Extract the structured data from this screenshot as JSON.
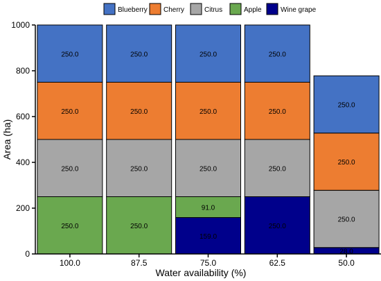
{
  "chart_data": {
    "type": "bar",
    "stacked": true,
    "categories": [
      "100.0",
      "87.5",
      "75.0",
      "62.5",
      "50.0"
    ],
    "series": [
      {
        "name": "Wine grape",
        "color": "#00008b",
        "values": [
          0,
          0,
          159.0,
          250.0,
          28.0
        ]
      },
      {
        "name": "Apple",
        "color": "#6aa84f",
        "values": [
          250.0,
          250.0,
          91.0,
          0,
          0
        ]
      },
      {
        "name": "Citrus",
        "color": "#a6a6a6",
        "values": [
          250.0,
          250.0,
          250.0,
          250.0,
          250.0
        ]
      },
      {
        "name": "Cherry",
        "color": "#ed7d31",
        "values": [
          250.0,
          250.0,
          250.0,
          250.0,
          250.0
        ]
      },
      {
        "name": "Blueberry",
        "color": "#4472c4",
        "values": [
          250.0,
          250.0,
          250.0,
          250.0,
          250.0
        ]
      }
    ],
    "labels": [
      [
        "",
        "",
        "159.0",
        "250.0",
        "28.0"
      ],
      [
        "250.0",
        "250.0",
        "91.0",
        "",
        ""
      ],
      [
        "250.0",
        "250.0",
        "250.0",
        "250.0",
        "250.0"
      ],
      [
        "250.0",
        "250.0",
        "250.0",
        "250.0",
        "250.0"
      ],
      [
        "250.0",
        "250.0",
        "250.0",
        "250.0",
        "250.0"
      ]
    ],
    "legend_order": [
      "Blueberry",
      "Cherry",
      "Citrus",
      "Apple",
      "Wine grape"
    ],
    "xlabel": "Water availability (%)",
    "ylabel": "Area (ha)",
    "ylim": [
      0,
      1000
    ],
    "yticks": [
      0,
      200,
      400,
      600,
      800,
      1000
    ],
    "grid": false,
    "legend_position": "top"
  }
}
